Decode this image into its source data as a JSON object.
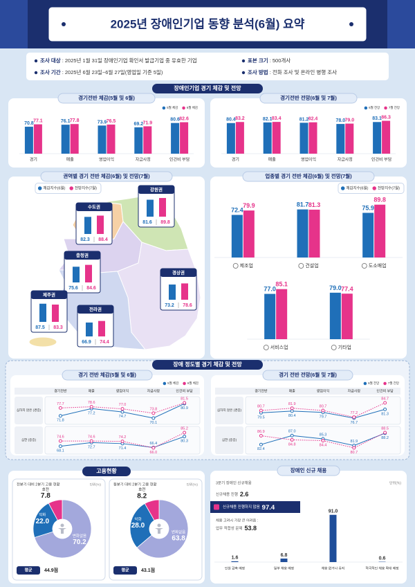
{
  "header": {
    "title": "2025년 장애인기업 동향 분석(6월) 요약",
    "info": [
      {
        "label": "조사 대상",
        "text": ": 2025년 1월 31일 장애인기업 확인서 발급기업 중 유효한 기업"
      },
      {
        "label": "표본 크기",
        "text": ": 500개사"
      },
      {
        "label": "조사 기간",
        "text": ": 2025년 6월 23일~6월 27일(영업일 기준 5일)"
      },
      {
        "label": "조사 방법",
        "text": ": 전화 조사 및 온라인 병행 조사"
      }
    ]
  },
  "sections": [
    "장애인기업 경기 체감 및 전망",
    "장애 정도별 경기 체감 및 전망",
    "고용현황"
  ],
  "chart_data": [
    {
      "type": "bar",
      "title": "경기전반 체감(5월 및 6월)",
      "categories": [
        "경기",
        "매출",
        "영업이익",
        "자금사정",
        "인건비 부담"
      ],
      "series": [
        {
          "name": "5월 체감",
          "color": "#1f6fb8",
          "values": [
            70.8,
            76.1,
            73.9,
            69.2,
            80.6
          ]
        },
        {
          "name": "6월 체감",
          "color": "#e6338a",
          "values": [
            77.1,
            77.8,
            76.5,
            71.9,
            82.6
          ]
        }
      ]
    },
    {
      "type": "bar",
      "title": "경기전반 전망(6월 및 7월)",
      "categories": [
        "경기",
        "매출",
        "영업이익",
        "자금사정",
        "인건비 부담"
      ],
      "series": [
        {
          "name": "6월 전망",
          "color": "#1f6fb8",
          "values": [
            80.4,
            82.1,
            81.2,
            78.0,
            83.1
          ],
          "value_labels": [
            "80.4",
            "82.1",
            "81.2",
            "78.0",
            "83.1"
          ]
        },
        {
          "name": "7월 전망",
          "color": "#e6338a",
          "values": [
            83.2,
            83.4,
            82.4,
            79.0,
            86.3
          ],
          "value_labels": [
            "83.2",
            "83.4",
            "82.4",
            "79.0",
            "86.3"
          ]
        }
      ]
    },
    {
      "type": "map",
      "title": "권역별 경기 전반 체감(6월) 및 전망(7월)",
      "categories": [
        "수도권",
        "강원권",
        "충청권",
        "경상권",
        "제주권",
        "전라권"
      ],
      "series": [
        {
          "name": "체감지수(6월)",
          "color": "#1f6fb8",
          "values": [
            82.3,
            81.6,
            75.6,
            73.2,
            87.5,
            66.9
          ]
        },
        {
          "name": "전망지수(7월)",
          "color": "#e6338a",
          "values": [
            88.4,
            89.8,
            84.6,
            78.6,
            83.3,
            74.4
          ]
        }
      ]
    },
    {
      "type": "bar",
      "title": "업종별 경기 전반 체감(6월) 및 전망(7월)",
      "categories": [
        "제조업",
        "건설업",
        "도소매업",
        "서비스업",
        "기타업"
      ],
      "series": [
        {
          "name": "체감지수(6월)",
          "color": "#1f6fb8",
          "values": [
            72.4,
            81.7,
            75.9,
            77.0,
            79.0
          ],
          "value_labels": [
            "72.4",
            "81.7",
            "75.9",
            "77.0",
            "79.0"
          ]
        },
        {
          "name": "전망지수(7월)",
          "color": "#e6338a",
          "values": [
            79.9,
            81.3,
            89.8,
            85.1,
            77.4
          ]
        }
      ]
    },
    {
      "type": "line",
      "title": "경기 전반 체감(5월 및 6월)",
      "categories": [
        "경기전반",
        "매출",
        "영업이익",
        "자금사정",
        "인건비 부담"
      ],
      "series": [
        {
          "name": "5월 체감",
          "color": "#1f6fb8"
        },
        {
          "name": "6월 체감",
          "color": "#e6338a"
        }
      ],
      "rows": [
        {
          "label": "심하지 않은 (경증)",
          "series": [
            {
              "values": [
                71.8,
                77.2,
                74.7,
                70.1,
                80.9
              ]
            },
            {
              "values": [
                77.7,
                78.6,
                77.0,
                73.8,
                81.5
              ],
              "value_labels": [
                "77.7",
                "78.6",
                "77.0",
                "73.8",
                "81.5"
              ]
            }
          ]
        },
        {
          "label": "심한 (중증)",
          "series": [
            {
              "values": [
                68.1,
                72.7,
                71.4,
                66.4,
                80.3
              ]
            },
            {
              "values": [
                74.6,
                74.6,
                74.2,
                66.0,
                85.2
              ],
              "value_labels": [
                "74.6",
                "74.6",
                "74.2",
                "66.0",
                "85.2"
              ]
            }
          ]
        }
      ]
    },
    {
      "type": "line",
      "title": "경기 전반 전망(6월 및 7월)",
      "categories": [
        "경기전반",
        "매출",
        "영업이익",
        "자금사정",
        "인건비 부담"
      ],
      "series": [
        {
          "name": "6월 전망",
          "color": "#1f6fb8"
        },
        {
          "name": "7월 전망",
          "color": "#e6338a"
        }
      ],
      "rows": [
        {
          "label": "심하지 않은 (경증)",
          "series": [
            {
              "values": [
                79.5,
                80.4,
                79.7,
                76.7,
                81.3
              ]
            },
            {
              "values": [
                80.7,
                81.9,
                80.7,
                77.2,
                84.7
              ]
            }
          ]
        },
        {
          "label": "심한 (중증)",
          "series": [
            {
              "values": [
                82.4,
                87.0,
                85.3,
                81.9,
                88.2
              ],
              "value_labels": [
                "82.4",
                "87.0",
                "85.3",
                "81.9",
                "88.2"
              ]
            },
            {
              "values": [
                86.9,
                84.8,
                84.4,
                80.7,
                88.5
              ]
            }
          ]
        }
      ]
    },
    {
      "type": "pie",
      "title": "전분기 대비 2분기 고용 현황",
      "unit": "단위(%)",
      "categories": [
        "변화없음",
        "악화",
        "호전"
      ],
      "values": [
        70.2,
        22.0,
        7.8
      ],
      "value_labels": [
        "70.2",
        "22.0",
        "7.8"
      ],
      "colors": [
        "#a3a8dc",
        "#1f6fb8",
        "#e6338a"
      ],
      "average_label": "평균",
      "average": "44.9점"
    },
    {
      "type": "pie",
      "title": "동분기 대비 2분기 고용 현황",
      "unit": "단위(%)",
      "categories": [
        "변화없음",
        "악화",
        "호전"
      ],
      "values": [
        63.8,
        28.0,
        8.2
      ],
      "value_labels": [
        "63.8",
        "28.0",
        "8.2"
      ],
      "colors": [
        "#a3a8dc",
        "#1f6fb8",
        "#e6338a"
      ],
      "average_label": "평균",
      "average": "43.1점"
    },
    {
      "type": "bar",
      "title": "장애인 신규 채용",
      "subtitle": "3분기 장애인 신규채용",
      "unit": "단위(%)",
      "progress_label": "신규채용 진행",
      "progress": 2.6,
      "not_progress_label": "신규채용 진행하지 않음",
      "not_progress": 97.4,
      "difficulty_label": "채용 고려시 가장 큰 어려움 :",
      "difficulty_item": "업무 적합성 문제",
      "difficulty": 53.8,
      "categories": [
        "인원 감축 예정",
        "일부 채용 예정",
        "채용 없거나 유지",
        "적극적인 채용 확대 예정"
      ],
      "values": [
        1.6,
        6.8,
        91.0,
        0.6
      ],
      "value_labels": [
        "1.6",
        "6.8",
        "91.0",
        "0.6"
      ],
      "color": "#1f4e9a"
    }
  ]
}
